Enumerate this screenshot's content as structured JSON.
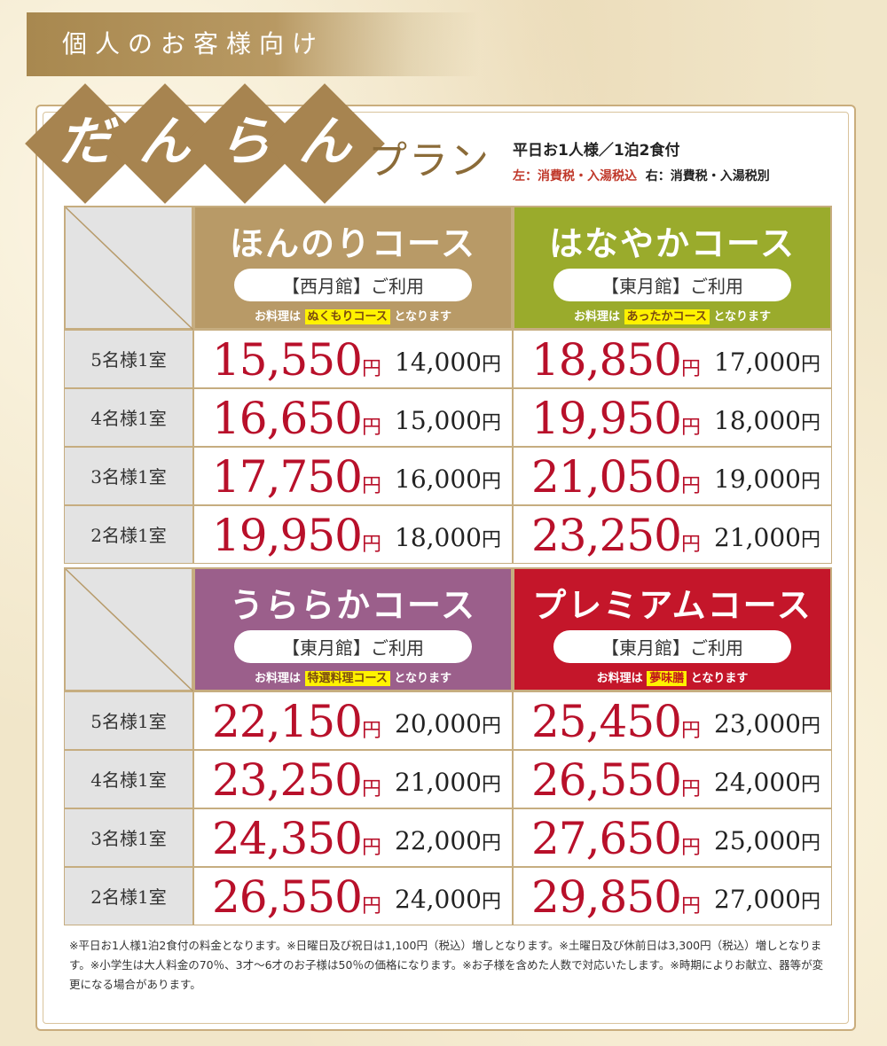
{
  "top_label": "個人のお客様向け",
  "title": {
    "chars": [
      "だ",
      "ん",
      "ら",
      "ん"
    ],
    "plan_word": "プラン",
    "line1": "平日お1人様／1泊2食付",
    "line2_left": "左：消費税・入湯税込",
    "line2_right": "右：消費税・入湯税別"
  },
  "colors": {
    "honnori": "#b89a67",
    "hanayaka": "#9aab2c",
    "uraraka": "#9b5f8b",
    "premium": "#c4162a",
    "price_red": "#b8102a"
  },
  "blocks": [
    {
      "courses": [
        {
          "name": "ほんのりコース",
          "building": "【西月館】ご利用",
          "note_pre": "お料理は",
          "note_hl": "ぬくもりコース",
          "note_post": "となります"
        },
        {
          "name": "はなやかコース",
          "building": "【東月館】ご利用",
          "note_pre": "お料理は",
          "note_hl": "あったかコース",
          "note_post": "となります"
        }
      ],
      "rows": [
        {
          "label": "5名様1室",
          "prices": [
            {
              "incl": "15,550",
              "excl": "14,000"
            },
            {
              "incl": "18,850",
              "excl": "17,000"
            }
          ]
        },
        {
          "label": "4名様1室",
          "prices": [
            {
              "incl": "16,650",
              "excl": "15,000"
            },
            {
              "incl": "19,950",
              "excl": "18,000"
            }
          ]
        },
        {
          "label": "3名様1室",
          "prices": [
            {
              "incl": "17,750",
              "excl": "16,000"
            },
            {
              "incl": "21,050",
              "excl": "19,000"
            }
          ]
        },
        {
          "label": "2名様1室",
          "prices": [
            {
              "incl": "19,950",
              "excl": "18,000"
            },
            {
              "incl": "23,250",
              "excl": "21,000"
            }
          ]
        }
      ]
    },
    {
      "courses": [
        {
          "name": "うららかコース",
          "building": "【東月館】ご利用",
          "note_pre": "お料理は",
          "note_hl": "特選料理コース",
          "note_post": "となります"
        },
        {
          "name": "プレミアムコース",
          "building": "【東月館】ご利用",
          "note_pre": "お料理は",
          "note_hl": "夢味膳",
          "note_post": "となります"
        }
      ],
      "rows": [
        {
          "label": "5名様1室",
          "prices": [
            {
              "incl": "22,150",
              "excl": "20,000"
            },
            {
              "incl": "25,450",
              "excl": "23,000"
            }
          ]
        },
        {
          "label": "4名様1室",
          "prices": [
            {
              "incl": "23,250",
              "excl": "21,000"
            },
            {
              "incl": "26,550",
              "excl": "24,000"
            }
          ]
        },
        {
          "label": "3名様1室",
          "prices": [
            {
              "incl": "24,350",
              "excl": "22,000"
            },
            {
              "incl": "27,650",
              "excl": "25,000"
            }
          ]
        },
        {
          "label": "2名様1室",
          "prices": [
            {
              "incl": "26,550",
              "excl": "24,000"
            },
            {
              "incl": "29,850",
              "excl": "27,000"
            }
          ]
        }
      ]
    }
  ],
  "yen": "円",
  "footnote": "※平日お1人様1泊2食付の料金となります。※日曜日及び祝日は1,100円（税込）増しとなります。※土曜日及び休前日は3,300円（税込）増しとなります。※小学生は大人料金の70％、3才～6才のお子様は50％の価格になります。※お子様を含めた人数で対応いたします。※時期によりお献立、器等が変更になる場合があります。"
}
